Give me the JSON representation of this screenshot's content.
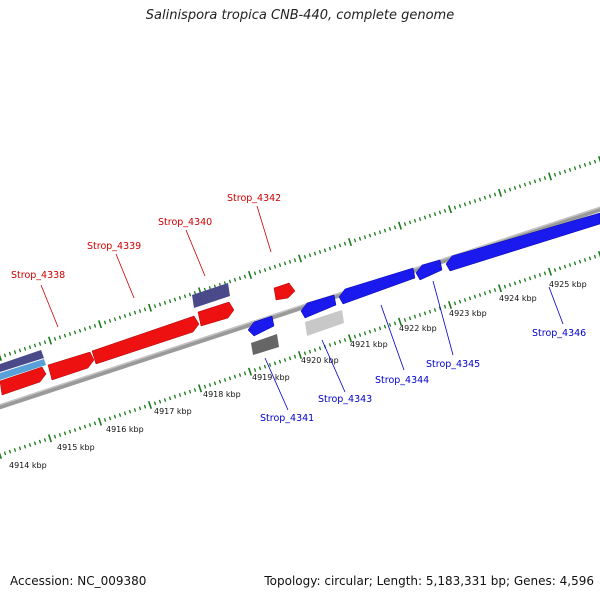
{
  "title": "Salinispora tropica CNB-440, complete genome",
  "footer": {
    "accession": "Accession: NC_009380",
    "summary": "Topology: circular; Length: 5,183,331 bp; Genes: 4,596"
  },
  "colors": {
    "forward_gene": "#ee1111",
    "reverse_gene": "#1a1aee",
    "rna_top": "#4a4a8a",
    "rna_bottom": "#666666",
    "pseudo_bottom": "#c8c8c8",
    "ruler_ticks": "#1a7a1a",
    "backbone": "#8a8a8a",
    "forward_label": "#cc0000",
    "reverse_label": "#0000cc"
  },
  "kbp_labels": [
    "4914 kbp",
    "4915 kbp",
    "4916 kbp",
    "4917 kbp",
    "4918 kbp",
    "4919 kbp",
    "4920 kbp",
    "4921 kbp",
    "4922 kbp",
    "4923 kbp",
    "4924 kbp",
    "4925 kbp"
  ],
  "gene_labels_forward": [
    "Strop_4338",
    "Strop_4339",
    "Strop_4340",
    "Strop_4342"
  ],
  "gene_labels_reverse": [
    "Strop_4341",
    "Strop_4343",
    "Strop_4344",
    "Strop_4345",
    "Strop_4346"
  ]
}
